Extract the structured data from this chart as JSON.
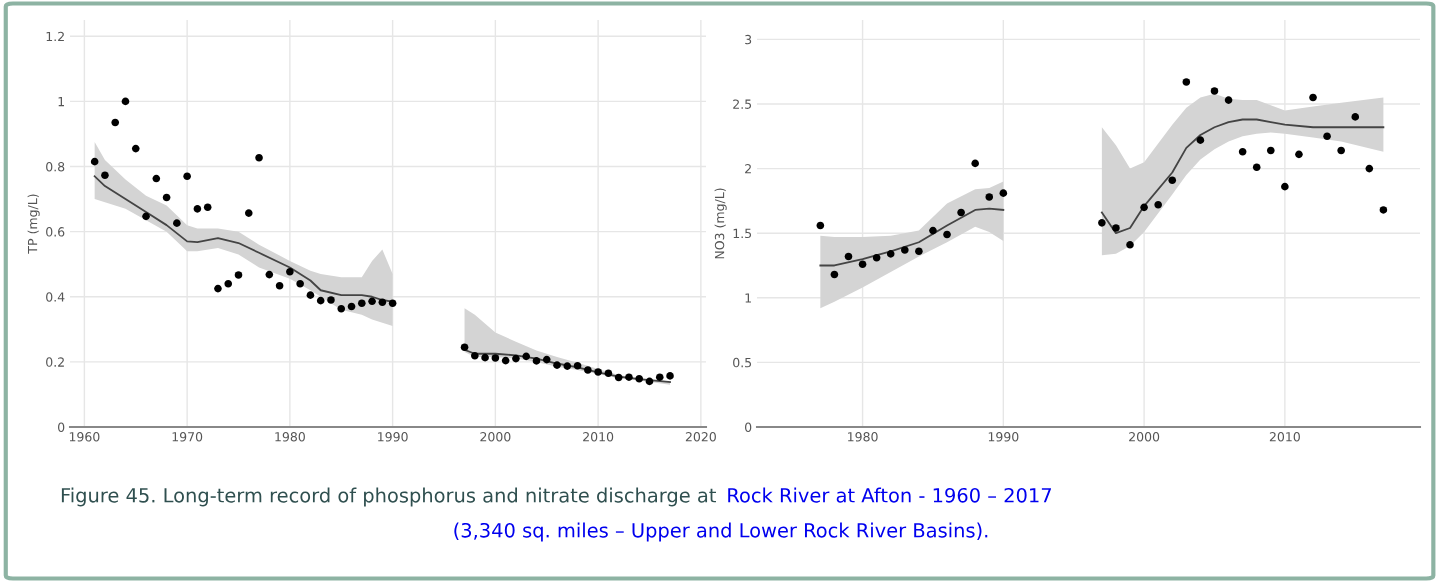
{
  "chart_data": [
    {
      "type": "scatter",
      "ylabel": "TP (mg/L)",
      "xlim": [
        1958.6,
        2020.5
      ],
      "ylim": [
        0,
        1.25
      ],
      "xticks": [
        1960,
        1970,
        1980,
        1990,
        2000,
        2010,
        2020
      ],
      "yticks": [
        0,
        0.2,
        0.4,
        0.6,
        0.8,
        1,
        1.2
      ],
      "grid": true,
      "marker": "circle",
      "annotations": [
        "Figure 45. Long-term record of phosphorus and nitrate discharge at",
        "Rock River at Afton - 1960 – 2017",
        "(3,340 sq. miles – Upper and Lower Rock River Basins)."
      ],
      "series": [
        {
          "color": "#000000",
          "x": [
            1961,
            1962,
            1963,
            1964,
            1965,
            1966,
            1967,
            1968,
            1969,
            1970,
            1971,
            1972,
            1973,
            1974,
            1975,
            1976,
            1977,
            1978,
            1979,
            1980,
            1981,
            1982,
            1983,
            1984,
            1985,
            1986,
            1987,
            1988,
            1989,
            1990,
            1997,
            1998,
            1999,
            2000,
            2001,
            2002,
            2003,
            2004,
            2005,
            2006,
            2007,
            2008,
            2009,
            2010,
            2011,
            2012,
            2013,
            2014,
            2015,
            2016,
            2017
          ],
          "values": [
            0.815,
            0.773,
            0.935,
            1.0,
            0.855,
            0.647,
            0.763,
            0.705,
            0.626,
            0.77,
            0.67,
            0.675,
            0.425,
            0.44,
            0.467,
            0.657,
            0.827,
            0.468,
            0.434,
            0.477,
            0.44,
            0.405,
            0.388,
            0.39,
            0.363,
            0.37,
            0.38,
            0.386,
            0.383,
            0.38,
            0.245,
            0.219,
            0.213,
            0.212,
            0.204,
            0.21,
            0.217,
            0.203,
            0.207,
            0.19,
            0.187,
            0.188,
            0.175,
            0.169,
            0.165,
            0.152,
            0.153,
            0.148,
            0.14,
            0.153,
            0.157
          ]
        },
        {
          "type": "line",
          "marker": "none",
          "color": "#444444",
          "x": [
            1961,
            1962,
            1964,
            1966,
            1968,
            1970,
            1971,
            1973,
            1975,
            1977,
            1980,
            1982,
            1983,
            1985,
            1987,
            1988,
            1989,
            1990
          ],
          "values": [
            0.77,
            0.74,
            0.7,
            0.66,
            0.62,
            0.57,
            0.568,
            0.58,
            0.565,
            0.535,
            0.49,
            0.45,
            0.42,
            0.405,
            0.405,
            0.4,
            0.39,
            0.385
          ],
          "lower": [
            0.7,
            0.69,
            0.67,
            0.635,
            0.6,
            0.54,
            0.54,
            0.55,
            0.53,
            0.49,
            0.455,
            0.42,
            0.4,
            0.36,
            0.345,
            0.33,
            0.32,
            0.31
          ],
          "upper": [
            0.875,
            0.82,
            0.76,
            0.71,
            0.68,
            0.62,
            0.61,
            0.61,
            0.6,
            0.56,
            0.51,
            0.48,
            0.47,
            0.46,
            0.46,
            0.51,
            0.545,
            0.47
          ]
        },
        {
          "type": "line",
          "marker": "none",
          "color": "#444444",
          "x": [
            1997,
            1998,
            2000,
            2002,
            2004,
            2006,
            2008,
            2010,
            2012,
            2014,
            2017
          ],
          "values": [
            0.237,
            0.225,
            0.225,
            0.22,
            0.21,
            0.195,
            0.183,
            0.168,
            0.155,
            0.147,
            0.138
          ],
          "lower": [
            0.23,
            0.215,
            0.215,
            0.21,
            0.2,
            0.185,
            0.175,
            0.163,
            0.15,
            0.143,
            0.13
          ],
          "upper": [
            0.365,
            0.345,
            0.29,
            0.262,
            0.235,
            0.215,
            0.197,
            0.178,
            0.16,
            0.15,
            0.14
          ]
        }
      ]
    },
    {
      "type": "scatter",
      "ylabel": "NO3 (mg/L)",
      "xlim": [
        1972.5,
        2019.6
      ],
      "ylim": [
        0,
        3.15
      ],
      "xticks": [
        1980,
        1990,
        2000,
        2010
      ],
      "yticks": [
        0,
        0.5,
        1,
        1.5,
        2,
        2.5,
        3
      ],
      "grid": true,
      "marker": "circle",
      "series": [
        {
          "color": "#000000",
          "x": [
            1977,
            1978,
            1979,
            1980,
            1981,
            1982,
            1983,
            1984,
            1985,
            1986,
            1987,
            1988,
            1989,
            1990,
            1997,
            1998,
            1999,
            2000,
            2001,
            2002,
            2003,
            2004,
            2005,
            2006,
            2007,
            2008,
            2009,
            2010,
            2011,
            2012,
            2013,
            2014,
            2015,
            2016,
            2017
          ],
          "values": [
            1.56,
            1.18,
            1.32,
            1.26,
            1.31,
            1.34,
            1.37,
            1.36,
            1.52,
            1.49,
            1.66,
            2.04,
            1.78,
            1.81,
            1.58,
            1.54,
            1.41,
            1.7,
            1.72,
            1.91,
            2.67,
            2.22,
            2.6,
            2.53,
            2.13,
            2.01,
            2.14,
            1.86,
            2.11,
            2.55,
            2.25,
            2.14,
            2.4,
            2.0,
            1.68
          ]
        },
        {
          "type": "line",
          "marker": "none",
          "color": "#444444",
          "x": [
            1977,
            1978,
            1980,
            1982,
            1984,
            1986,
            1988,
            1989,
            1990
          ],
          "values": [
            1.25,
            1.25,
            1.3,
            1.36,
            1.43,
            1.56,
            1.68,
            1.69,
            1.68
          ],
          "lower": [
            0.92,
            0.97,
            1.08,
            1.2,
            1.32,
            1.43,
            1.55,
            1.51,
            1.44
          ],
          "upper": [
            1.48,
            1.47,
            1.47,
            1.48,
            1.52,
            1.73,
            1.84,
            1.85,
            1.9
          ]
        },
        {
          "type": "line",
          "marker": "none",
          "color": "#444444",
          "x": [
            1997,
            1998,
            1999,
            2000,
            2002,
            2003,
            2004,
            2005,
            2006,
            2007,
            2008,
            2009,
            2010,
            2012,
            2014,
            2017
          ],
          "values": [
            1.66,
            1.5,
            1.54,
            1.71,
            1.97,
            2.16,
            2.26,
            2.32,
            2.36,
            2.38,
            2.38,
            2.36,
            2.34,
            2.32,
            2.32,
            2.32
          ],
          "lower": [
            1.33,
            1.34,
            1.4,
            1.51,
            1.8,
            1.95,
            2.07,
            2.15,
            2.21,
            2.25,
            2.27,
            2.28,
            2.27,
            2.24,
            2.21,
            2.13
          ],
          "upper": [
            2.32,
            2.18,
            2.0,
            2.05,
            2.34,
            2.47,
            2.55,
            2.58,
            2.54,
            2.53,
            2.53,
            2.49,
            2.45,
            2.48,
            2.51,
            2.55
          ]
        }
      ]
    }
  ]
}
